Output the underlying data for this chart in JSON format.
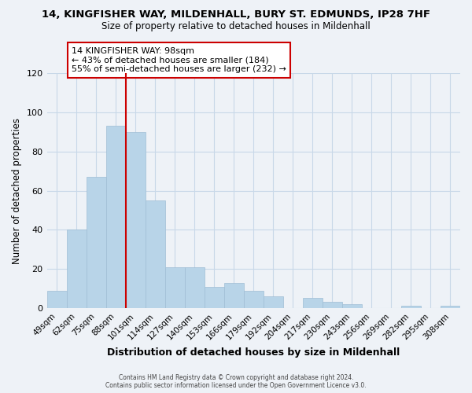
{
  "title_line1": "14, KINGFISHER WAY, MILDENHALL, BURY ST. EDMUNDS, IP28 7HF",
  "title_line2": "Size of property relative to detached houses in Mildenhall",
  "xlabel": "Distribution of detached houses by size in Mildenhall",
  "ylabel": "Number of detached properties",
  "bar_color": "#b8d4e8",
  "bar_edge_color": "#9fbdd4",
  "categories": [
    "49sqm",
    "62sqm",
    "75sqm",
    "88sqm",
    "101sqm",
    "114sqm",
    "127sqm",
    "140sqm",
    "153sqm",
    "166sqm",
    "179sqm",
    "192sqm",
    "204sqm",
    "217sqm",
    "230sqm",
    "243sqm",
    "256sqm",
    "269sqm",
    "282sqm",
    "295sqm",
    "308sqm"
  ],
  "values": [
    9,
    40,
    67,
    93,
    90,
    55,
    21,
    21,
    11,
    13,
    9,
    6,
    0,
    5,
    3,
    2,
    0,
    0,
    1,
    0,
    1
  ],
  "ylim": [
    0,
    120
  ],
  "yticks": [
    0,
    20,
    40,
    60,
    80,
    100,
    120
  ],
  "vline_x_index": 4,
  "vline_color": "#cc0000",
  "annotation_title": "14 KINGFISHER WAY: 98sqm",
  "annotation_line2": "← 43% of detached houses are smaller (184)",
  "annotation_line3": "55% of semi-detached houses are larger (232) →",
  "annotation_box_color": "#ffffff",
  "annotation_box_edge": "#cc0000",
  "footer_line1": "Contains HM Land Registry data © Crown copyright and database right 2024.",
  "footer_line2": "Contains public sector information licensed under the Open Government Licence v3.0.",
  "grid_color": "#c8d8e8",
  "background_color": "#eef2f7"
}
